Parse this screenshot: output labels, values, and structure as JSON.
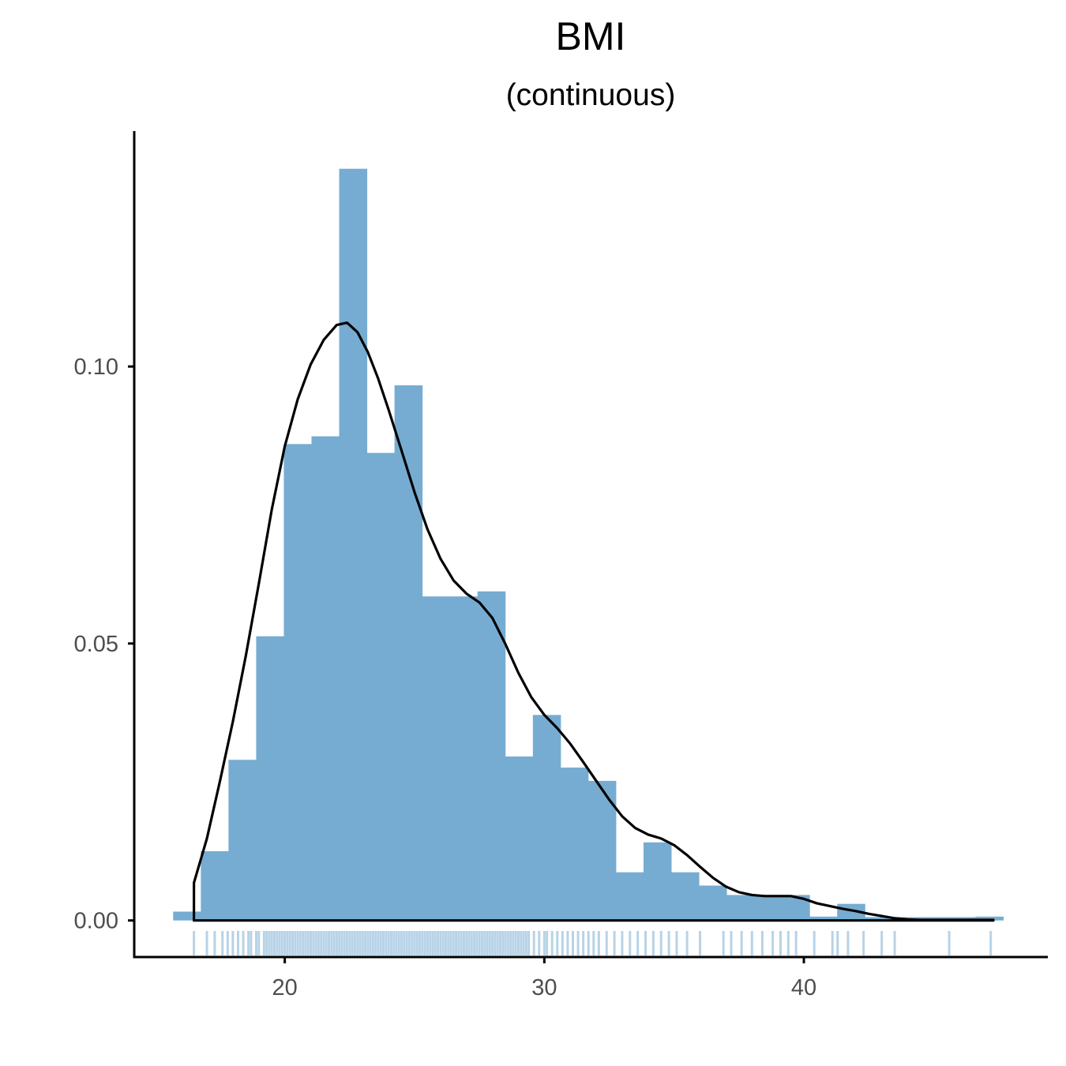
{
  "chart_data": {
    "type": "bar",
    "title": "BMI",
    "subtitle": "(continuous)",
    "xlabel": "",
    "ylabel": "",
    "xlim": [
      14.2,
      49.4
    ],
    "ylim": [
      -0.0066,
      0.1425
    ],
    "x_ticks": [
      20,
      30,
      40
    ],
    "x_tick_labels": [
      "20",
      "30",
      "40"
    ],
    "y_ticks": [
      0.0,
      0.05,
      0.1
    ],
    "y_tick_labels": [
      "0.00",
      "0.05",
      "0.10"
    ],
    "grid": false,
    "legend": "none",
    "bar_color": "#76acd1",
    "rug_color": "#1f77b4",
    "density_color": "#000000",
    "histogram": {
      "bin_width": 1.066,
      "bin_start": 15.7,
      "density": [
        0.0016,
        0.0125,
        0.029,
        0.0513,
        0.086,
        0.0874,
        0.1357,
        0.0844,
        0.0966,
        0.0585,
        0.0585,
        0.0594,
        0.0296,
        0.0371,
        0.0276,
        0.0252,
        0.0087,
        0.0141,
        0.0087,
        0.0063,
        0.0046,
        0.0046,
        0.0046,
        0.0007,
        0.003,
        0.0006,
        0.0006,
        0.0006,
        0.0006,
        0.0007
      ]
    },
    "density_curve": {
      "x": [
        16.5,
        17.0,
        17.5,
        18.0,
        18.5,
        19.0,
        19.5,
        20.0,
        20.5,
        21.0,
        21.5,
        22.0,
        22.4,
        22.8,
        23.2,
        23.6,
        24.0,
        24.5,
        25.0,
        25.5,
        26.0,
        26.5,
        27.0,
        27.5,
        28.0,
        28.5,
        29.0,
        29.5,
        30.0,
        30.5,
        31.0,
        31.5,
        32.0,
        32.5,
        33.0,
        33.5,
        34.0,
        34.5,
        35.0,
        35.5,
        36.0,
        36.5,
        37.0,
        37.5,
        38.0,
        38.5,
        39.0,
        39.5,
        40.0,
        40.5,
        41.0,
        41.5,
        42.0,
        42.5,
        43.0,
        43.5,
        44.0,
        44.5,
        45.0,
        45.5,
        46.0,
        46.5,
        47.0,
        47.3
      ],
      "y": [
        0.0068,
        0.0148,
        0.0251,
        0.0359,
        0.0478,
        0.0608,
        0.0742,
        0.0856,
        0.0941,
        0.1004,
        0.1048,
        0.1075,
        0.1079,
        0.1062,
        0.1026,
        0.0978,
        0.0922,
        0.0848,
        0.0773,
        0.0706,
        0.0653,
        0.0614,
        0.059,
        0.0574,
        0.0546,
        0.0499,
        0.0447,
        0.0403,
        0.0371,
        0.0347,
        0.0319,
        0.0286,
        0.0252,
        0.0218,
        0.0188,
        0.0167,
        0.0155,
        0.0148,
        0.0136,
        0.0118,
        0.0097,
        0.0077,
        0.0061,
        0.0051,
        0.0046,
        0.0044,
        0.0044,
        0.0044,
        0.0039,
        0.0031,
        0.0026,
        0.0021,
        0.0017,
        0.0012,
        0.0008,
        0.0004,
        0.0002,
        0.0001,
        0.0001,
        0.0001,
        0.0001,
        0.0001,
        0.0001,
        0.0001
      ]
    },
    "rug": [
      16.5,
      17.0,
      17.3,
      17.6,
      17.8,
      18.0,
      18.2,
      18.4,
      18.6,
      18.7,
      18.9,
      19.0,
      19.2,
      19.3,
      19.4,
      19.5,
      19.6,
      19.7,
      19.8,
      19.9,
      20.0,
      20.1,
      20.2,
      20.3,
      20.4,
      20.5,
      20.6,
      20.7,
      20.8,
      20.9,
      21.0,
      21.1,
      21.2,
      21.3,
      21.4,
      21.5,
      21.6,
      21.7,
      21.8,
      21.9,
      22.0,
      22.1,
      22.2,
      22.3,
      22.4,
      22.5,
      22.6,
      22.7,
      22.8,
      22.9,
      23.0,
      23.1,
      23.2,
      23.3,
      23.4,
      23.5,
      23.6,
      23.7,
      23.8,
      23.9,
      24.0,
      24.1,
      24.2,
      24.3,
      24.4,
      24.5,
      24.6,
      24.7,
      24.8,
      24.9,
      25.0,
      25.1,
      25.2,
      25.3,
      25.4,
      25.5,
      25.6,
      25.7,
      25.8,
      25.9,
      26.0,
      26.1,
      26.2,
      26.3,
      26.4,
      26.5,
      26.6,
      26.7,
      26.8,
      26.9,
      27.0,
      27.1,
      27.2,
      27.3,
      27.4,
      27.5,
      27.6,
      27.7,
      27.8,
      27.9,
      28.0,
      28.1,
      28.2,
      28.3,
      28.4,
      28.5,
      28.6,
      28.7,
      28.8,
      28.9,
      29.0,
      29.1,
      29.2,
      29.3,
      29.4,
      29.6,
      29.8,
      30.0,
      30.1,
      30.3,
      30.5,
      30.7,
      30.9,
      31.1,
      31.3,
      31.5,
      31.7,
      31.9,
      32.1,
      32.4,
      32.7,
      33.0,
      33.3,
      33.6,
      33.9,
      34.2,
      34.5,
      34.8,
      35.1,
      35.5,
      36.0,
      36.9,
      37.2,
      37.6,
      38.0,
      38.4,
      38.8,
      39.1,
      39.4,
      39.7,
      40.4,
      41.1,
      41.3,
      41.7,
      42.3,
      43.0,
      43.5,
      45.6,
      47.2
    ]
  }
}
